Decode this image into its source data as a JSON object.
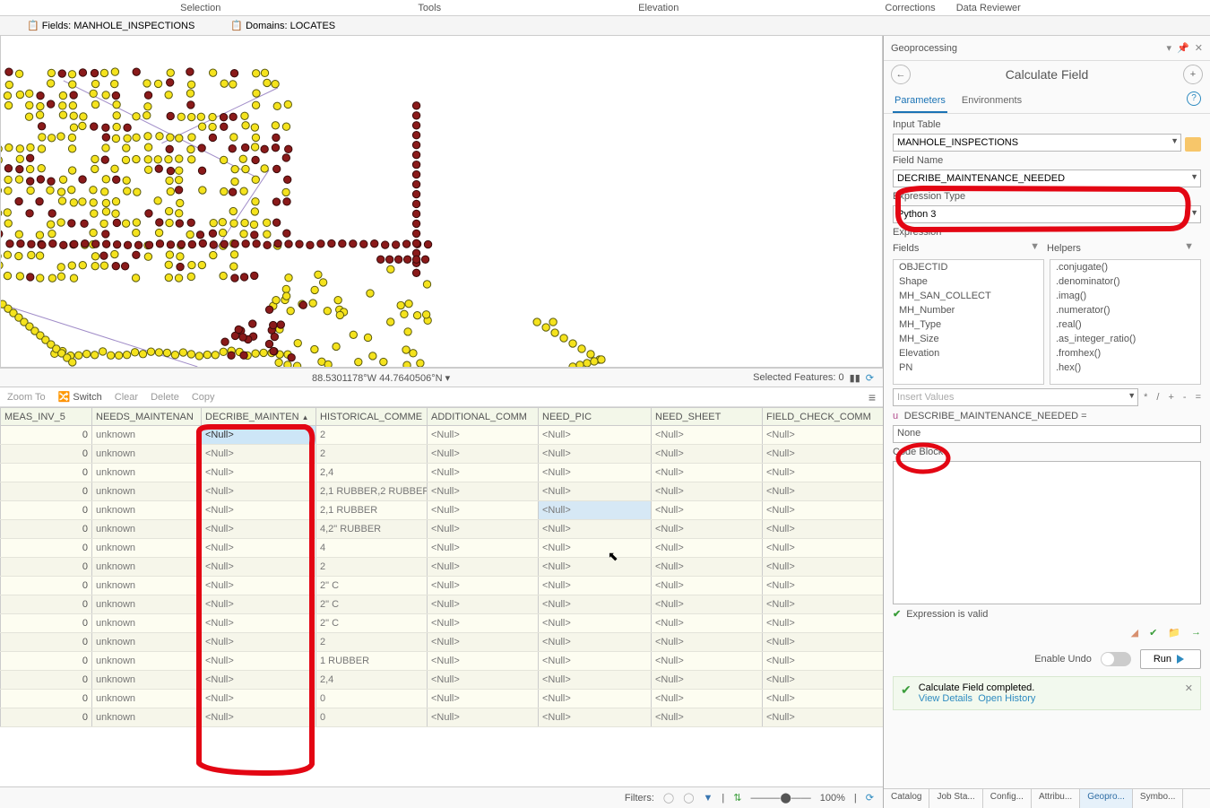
{
  "ribbon": {
    "selection": "Selection",
    "tools": "Tools",
    "elevation": "Elevation",
    "corrections": "Corrections",
    "data_reviewer": "Data Reviewer"
  },
  "sec": {
    "fields": "Fields: MANHOLE_INSPECTIONS",
    "domains": "Domains: LOCATES"
  },
  "map": {
    "coord": "88.5301178°W 44.7640506°N",
    "sel_label": "Selected Features: 0",
    "colors": {
      "yellow": "#f5e31d",
      "yellow_stroke": "#5b5b0f",
      "maroon": "#8a1a1a",
      "maroon_stroke": "#3a0b0b",
      "line": "#a08cc8"
    }
  },
  "tbl_tb": {
    "zoom": "Zoom To",
    "switch": "Switch",
    "clear": "Clear",
    "delete": "Delete",
    "copy": "Copy"
  },
  "columns": [
    "MEAS_INV_5",
    "NEEDS_MAINTENAN",
    "DECRIBE_MAINTEN",
    "HISTORICAL_COMME",
    "ADDITIONAL_COMM",
    "NEED_PIC",
    "NEED_SHEET",
    "FIELD_CHECK_COMM"
  ],
  "rows": [
    [
      "0",
      "unknown",
      "<Null>",
      "2",
      "<Null>",
      "<Null>",
      "<Null>",
      "<Null>"
    ],
    [
      "0",
      "unknown",
      "<Null>",
      "2",
      "<Null>",
      "<Null>",
      "<Null>",
      "<Null>"
    ],
    [
      "0",
      "unknown",
      "<Null>",
      "2,4",
      "<Null>",
      "<Null>",
      "<Null>",
      "<Null>"
    ],
    [
      "0",
      "unknown",
      "<Null>",
      "2,1 RUBBER,2 RUBBER",
      "<Null>",
      "<Null>",
      "<Null>",
      "<Null>"
    ],
    [
      "0",
      "unknown",
      "<Null>",
      "2,1 RUBBER",
      "<Null>",
      "<Null>",
      "<Null>",
      "<Null>"
    ],
    [
      "0",
      "unknown",
      "<Null>",
      "4,2\" RUBBER",
      "<Null>",
      "<Null>",
      "<Null>",
      "<Null>"
    ],
    [
      "0",
      "unknown",
      "<Null>",
      "4",
      "<Null>",
      "<Null>",
      "<Null>",
      "<Null>"
    ],
    [
      "0",
      "unknown",
      "<Null>",
      "2",
      "<Null>",
      "<Null>",
      "<Null>",
      "<Null>"
    ],
    [
      "0",
      "unknown",
      "<Null>",
      "2\" C",
      "<Null>",
      "<Null>",
      "<Null>",
      "<Null>"
    ],
    [
      "0",
      "unknown",
      "<Null>",
      "2\" C",
      "<Null>",
      "<Null>",
      "<Null>",
      "<Null>"
    ],
    [
      "0",
      "unknown",
      "<Null>",
      "2\" C",
      "<Null>",
      "<Null>",
      "<Null>",
      "<Null>"
    ],
    [
      "0",
      "unknown",
      "<Null>",
      "2",
      "<Null>",
      "<Null>",
      "<Null>",
      "<Null>"
    ],
    [
      "0",
      "unknown",
      "<Null>",
      "1 RUBBER",
      "<Null>",
      "<Null>",
      "<Null>",
      "<Null>"
    ],
    [
      "0",
      "unknown",
      "<Null>",
      "2,4",
      "<Null>",
      "<Null>",
      "<Null>",
      "<Null>"
    ],
    [
      "0",
      "unknown",
      "<Null>",
      "0",
      "<Null>",
      "<Null>",
      "<Null>",
      "<Null>"
    ],
    [
      "0",
      "unknown",
      "<Null>",
      "0",
      "<Null>",
      "<Null>",
      "<Null>",
      "<Null>"
    ]
  ],
  "selected_cell": {
    "row": 0,
    "col": 2
  },
  "hover_cell": {
    "row": 4,
    "col": 5
  },
  "filters": {
    "label": "Filters:",
    "zoom": "100%"
  },
  "gp": {
    "title": "Geoprocessing",
    "tool": "Calculate Field",
    "tabs": {
      "params": "Parameters",
      "env": "Environments"
    },
    "input_table_lbl": "Input Table",
    "input_table": "MANHOLE_INSPECTIONS",
    "field_name_lbl": "Field Name",
    "field_name": "DECRIBE_MAINTENANCE_NEEDED",
    "expr_type_lbl": "Expression Type",
    "expr_type": "Python 3",
    "expr_lbl": "Expression",
    "fields_hdr": "Fields",
    "helpers_hdr": "Helpers",
    "fields_list": [
      "OBJECTID",
      "Shape",
      "MH_SAN_COLLECT",
      "MH_Number",
      "MH_Type",
      "MH_Size",
      "Elevation",
      "PN"
    ],
    "helpers_list": [
      ".conjugate()",
      ".denominator()",
      ".imag()",
      ".numerator()",
      ".real()",
      ".as_integer_ratio()",
      ".fromhex()",
      ".hex()"
    ],
    "insert_values": "Insert Values",
    "ops": [
      "*",
      "/",
      "+",
      "-",
      "="
    ],
    "equals_line": "DESCRIBE_MAINTENANCE_NEEDED =",
    "expr_value": "None",
    "code_block_lbl": "Code Block",
    "valid": "Expression is valid",
    "undo_lbl": "Enable Undo",
    "run": "Run",
    "msg": "Calculate Field completed.",
    "view_details": "View Details",
    "open_history": "Open History"
  },
  "bottom_tabs": [
    "Catalog",
    "Job Sta...",
    "Config...",
    "Attribu...",
    "Geopro...",
    "Symbo..."
  ],
  "bottom_active": 4,
  "annotation_color": "#e30613"
}
